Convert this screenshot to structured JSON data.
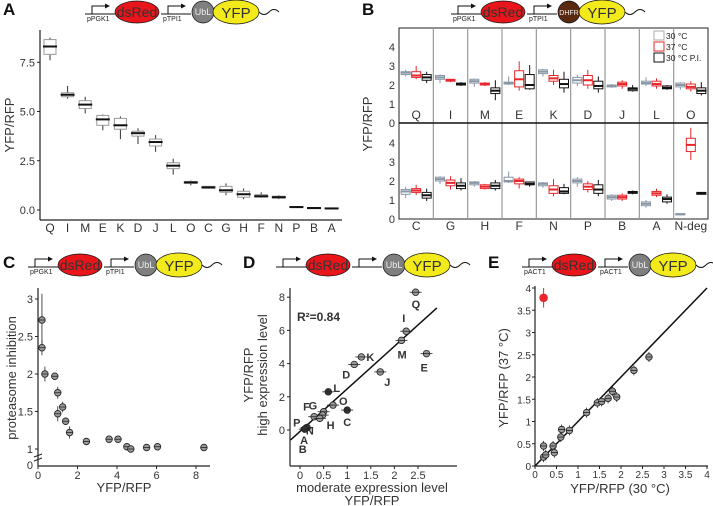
{
  "panels": [
    "A",
    "B",
    "C",
    "D",
    "E"
  ],
  "constructs": {
    "A": {
      "promoter1": "pPGK1",
      "reporter": "dsRed",
      "promoter2": "pTPI1",
      "tag": "UbL",
      "fusion": "YFP",
      "tag_color": "#7f7f7f"
    },
    "B": {
      "promoter1": "pPGK1",
      "reporter": "dsRed",
      "promoter2": "pTPI1",
      "tag": "DHFR",
      "fusion": "YFP",
      "tag_color": "#5a2a10"
    },
    "C": {
      "promoter1": "pPGK1",
      "reporter": "dsRed",
      "promoter2": "pTPI1",
      "tag": "UbL",
      "fusion": "YFP",
      "tag_color": "#7f7f7f"
    },
    "D": {
      "promoter1": "",
      "reporter": "dsRed",
      "promoter2": "",
      "tag": "UbL",
      "fusion": "YFP",
      "tag_color": "#7f7f7f"
    },
    "E": {
      "promoter1": "pACT1",
      "reporter": "dsRed",
      "promoter2": "pACT1",
      "tag": "UbL",
      "fusion": "YFP",
      "tag_color": "#7f7f7f"
    }
  },
  "colors": {
    "reporter": "#e8161b",
    "fusion": "#f2ea1a",
    "red_series": "#e8262a",
    "grey_series": "#8896a6",
    "black_series": "#111111"
  },
  "chart_data": [
    {
      "panel": "A",
      "type": "box",
      "ylabel": "YFP/RFP",
      "ylim": [
        -0.3,
        9.2
      ],
      "yticks": [
        "0.0",
        "2.5",
        "5.0",
        "7.5"
      ],
      "ytick_values": [
        0,
        2.5,
        5,
        7.5
      ],
      "categories": [
        "Q",
        "I",
        "M",
        "E",
        "K",
        "D",
        "J",
        "L",
        "O",
        "C",
        "G",
        "H",
        "F",
        "N",
        "P",
        "B",
        "A"
      ],
      "median": [
        8.3,
        5.85,
        5.35,
        4.6,
        4.3,
        3.9,
        3.45,
        2.25,
        1.4,
        1.15,
        1.0,
        0.8,
        0.7,
        0.65,
        0.15,
        0.1,
        0.08
      ],
      "q1": [
        7.9,
        5.75,
        5.15,
        4.3,
        4.1,
        3.75,
        3.25,
        2.1,
        1.35,
        1.1,
        0.9,
        0.65,
        0.65,
        0.6,
        0.12,
        0.08,
        0.05
      ],
      "q3": [
        8.65,
        5.95,
        5.55,
        4.8,
        4.65,
        4.0,
        3.6,
        2.4,
        1.45,
        1.2,
        1.2,
        0.95,
        0.78,
        0.7,
        0.17,
        0.12,
        0.1
      ],
      "min": [
        7.6,
        5.65,
        4.9,
        4.05,
        3.6,
        3.35,
        2.95,
        1.8,
        1.25,
        1.08,
        0.75,
        0.55,
        0.62,
        0.55,
        0.1,
        0.06,
        0.03
      ],
      "max": [
        8.75,
        6.3,
        5.75,
        4.85,
        4.75,
        4.15,
        3.8,
        2.6,
        1.5,
        1.22,
        1.35,
        1.1,
        0.9,
        0.75,
        0.19,
        0.14,
        0.12
      ]
    },
    {
      "panel": "B",
      "type": "box",
      "ylabel": "YFP/RFP",
      "ylim": [
        0,
        5
      ],
      "yticks": [
        "0",
        "1",
        "2",
        "3",
        "4"
      ],
      "legend": [
        "30 °C",
        "37 °C",
        "30 °C P.I."
      ],
      "legend_position": "top-right",
      "rows": [
        {
          "categories": [
            "Q",
            "I",
            "M",
            "E",
            "K",
            "D",
            "J",
            "L",
            "O"
          ],
          "series": [
            {
              "name": "30 °C",
              "median": [
                2.65,
                2.4,
                2.2,
                2.1,
                2.7,
                2.25,
                1.95,
                2.1,
                2.0
              ],
              "q1": [
                2.55,
                2.3,
                2.1,
                2.05,
                2.6,
                2.1,
                1.9,
                2.05,
                1.9
              ],
              "q3": [
                2.7,
                2.5,
                2.3,
                2.15,
                2.8,
                2.4,
                2.0,
                2.2,
                2.1
              ],
              "min": [
                2.45,
                2.1,
                1.9,
                2.0,
                2.45,
                1.95,
                1.85,
                1.95,
                1.75
              ],
              "max": [
                2.8,
                2.55,
                2.35,
                2.45,
                2.85,
                2.55,
                2.05,
                2.4,
                2.15
              ]
            },
            {
              "name": "37 °C",
              "median": [
                2.5,
                2.25,
                2.05,
                2.3,
                2.35,
                2.25,
                2.05,
                2.05,
                1.9
              ],
              "q1": [
                2.4,
                2.2,
                2.0,
                1.9,
                2.2,
                2.0,
                1.95,
                1.95,
                1.8
              ],
              "q3": [
                2.7,
                2.3,
                2.1,
                2.75,
                2.5,
                2.5,
                2.15,
                2.2,
                2.05
              ],
              "min": [
                2.3,
                2.15,
                1.95,
                1.7,
                2.0,
                1.8,
                1.8,
                1.8,
                1.65
              ],
              "max": [
                3.0,
                2.3,
                2.15,
                3.25,
                2.8,
                2.8,
                2.25,
                2.35,
                2.2
              ]
            },
            {
              "name": "30 °C P.I.",
              "median": [
                2.4,
                2.05,
                1.7,
                2.0,
                2.05,
                1.95,
                1.8,
                1.85,
                1.7
              ],
              "q1": [
                2.25,
                2.0,
                1.55,
                1.8,
                1.85,
                1.8,
                1.7,
                1.8,
                1.55
              ],
              "q3": [
                2.55,
                2.1,
                1.85,
                2.55,
                2.3,
                2.2,
                1.85,
                1.95,
                1.85
              ],
              "min": [
                2.1,
                1.95,
                1.2,
                1.75,
                1.6,
                1.6,
                1.65,
                1.75,
                1.45
              ],
              "max": [
                2.7,
                2.15,
                2.25,
                3.05,
                2.7,
                2.45,
                2.0,
                2.0,
                2.15
              ]
            }
          ]
        },
        {
          "categories": [
            "C",
            "G",
            "H",
            "F",
            "N",
            "P",
            "B",
            "A",
            "N-deg"
          ],
          "series": [
            {
              "name": "30 °C",
              "median": [
                1.45,
                2.1,
                1.9,
                2.0,
                1.85,
                2.0,
                1.15,
                0.8,
                0.25
              ],
              "q1": [
                1.3,
                2.0,
                1.8,
                1.95,
                1.75,
                1.9,
                1.05,
                0.7,
                0.22
              ],
              "q3": [
                1.55,
                2.2,
                1.95,
                2.2,
                1.9,
                2.1,
                1.25,
                0.9,
                0.28
              ],
              "min": [
                1.1,
                1.85,
                1.7,
                1.9,
                1.65,
                1.7,
                0.95,
                0.6,
                0.2
              ],
              "max": [
                1.7,
                2.25,
                2.0,
                2.5,
                1.95,
                2.2,
                1.3,
                1.0,
                0.3
              ]
            },
            {
              "name": "37 °C",
              "median": [
                1.5,
                1.9,
                1.7,
                2.0,
                1.55,
                1.7,
                1.15,
                1.35,
                3.9
              ],
              "q1": [
                1.4,
                1.75,
                1.6,
                1.85,
                1.35,
                1.55,
                1.05,
                1.25,
                3.55
              ],
              "q3": [
                1.6,
                2.05,
                1.8,
                2.1,
                1.75,
                1.85,
                1.25,
                1.45,
                4.25
              ],
              "min": [
                1.25,
                1.55,
                1.55,
                1.6,
                1.2,
                1.4,
                0.95,
                1.15,
                3.1
              ],
              "max": [
                1.8,
                2.25,
                1.85,
                2.2,
                2.1,
                2.0,
                1.35,
                1.6,
                4.8
              ]
            },
            {
              "name": "30 °C P.I.",
              "median": [
                1.25,
                1.75,
                1.75,
                1.85,
                1.45,
                1.55,
                1.4,
                1.05,
                1.35
              ],
              "q1": [
                1.1,
                1.6,
                1.6,
                1.8,
                1.35,
                1.35,
                1.35,
                0.9,
                1.3
              ],
              "q3": [
                1.4,
                1.9,
                1.9,
                1.95,
                1.65,
                1.8,
                1.45,
                1.15,
                1.4
              ],
              "min": [
                0.95,
                1.5,
                1.5,
                1.7,
                1.3,
                1.2,
                1.3,
                0.8,
                1.28
              ],
              "max": [
                1.6,
                2.15,
                2.05,
                1.95,
                1.85,
                2.05,
                1.5,
                1.3,
                1.42
              ]
            }
          ]
        }
      ]
    },
    {
      "panel": "C",
      "type": "scatter",
      "xlabel": "YFP/RFP",
      "ylabel": "proteasome inhibition",
      "xlim": [
        0,
        9
      ],
      "ylim": [
        1,
        3.2
      ],
      "xticks": [
        "0",
        "2",
        "4",
        "6",
        "8"
      ],
      "yticks": [
        "1",
        "1.5",
        "2",
        "2.5",
        "3"
      ],
      "axis_break_label": "0",
      "points": [
        {
          "x": 0.2,
          "y": 2.72,
          "yerr": 0.35
        },
        {
          "x": 0.2,
          "y": 2.35,
          "yerr": 0.1
        },
        {
          "x": 0.35,
          "y": 2.0,
          "yerr": 0.1
        },
        {
          "x": 0.85,
          "y": 1.97,
          "yerr": 0.04
        },
        {
          "x": 1.0,
          "y": 1.75,
          "yerr": 0.08
        },
        {
          "x": 1.0,
          "y": 1.47,
          "yerr": 0.1
        },
        {
          "x": 1.25,
          "y": 1.56,
          "yerr": 0.07
        },
        {
          "x": 1.4,
          "y": 1.37,
          "yerr": 0.05
        },
        {
          "x": 1.6,
          "y": 1.22,
          "yerr": 0.08
        },
        {
          "x": 2.45,
          "y": 1.1,
          "yerr": 0.03
        },
        {
          "x": 3.6,
          "y": 1.13,
          "yerr": 0.03
        },
        {
          "x": 4.05,
          "y": 1.13,
          "yerr": 0.03
        },
        {
          "x": 4.5,
          "y": 1.03,
          "yerr": 0.03
        },
        {
          "x": 4.7,
          "y": 1.0,
          "yerr": 0.02
        },
        {
          "x": 5.5,
          "y": 1.02,
          "yerr": 0.02
        },
        {
          "x": 6.05,
          "y": 1.03,
          "yerr": 0.03
        },
        {
          "x": 8.4,
          "y": 1.02,
          "yerr": 0.02
        }
      ]
    },
    {
      "panel": "D",
      "type": "scatter",
      "xlabel": "moderate expression level",
      "xlabel2": "YFP/RFP",
      "ylabel": "high expression level",
      "ylabel2": "YFP/RFP",
      "annotation": "R²=0.84",
      "xlim": [
        -0.2,
        2.9
      ],
      "ylim": [
        -0.6,
        8.6
      ],
      "xticks": [
        "0",
        "0.5",
        "1",
        "1.5",
        "2",
        "2.5"
      ],
      "yticks": [
        "0",
        "2",
        "4",
        "6",
        "8"
      ],
      "fit_line": {
        "x": [
          -0.2,
          2.9
        ],
        "y": [
          -0.6,
          7.35
        ]
      },
      "points": [
        {
          "label": "Q",
          "x": 2.45,
          "y": 8.3
        },
        {
          "label": "I",
          "x": 2.25,
          "y": 5.95
        },
        {
          "label": "M",
          "x": 2.15,
          "y": 5.4
        },
        {
          "label": "E",
          "x": 2.68,
          "y": 4.6
        },
        {
          "label": "K",
          "x": 1.3,
          "y": 4.4
        },
        {
          "label": "D",
          "x": 1.15,
          "y": 3.95
        },
        {
          "label": "J",
          "x": 1.7,
          "y": 3.5
        },
        {
          "label": "L",
          "x": 0.6,
          "y": 2.3
        },
        {
          "label": "G",
          "x": 0.5,
          "y": 1.1
        },
        {
          "label": "O",
          "x": 0.7,
          "y": 1.5
        },
        {
          "label": "C",
          "x": 1.0,
          "y": 1.2
        },
        {
          "label": "F",
          "x": 0.3,
          "y": 0.8
        },
        {
          "label": "H",
          "x": 0.48,
          "y": 0.9
        },
        {
          "label": "N",
          "x": 0.42,
          "y": 0.7
        },
        {
          "label": "P",
          "x": 0.15,
          "y": 0.15
        },
        {
          "label": "A",
          "x": 0.13,
          "y": 0.12
        },
        {
          "label": "B",
          "x": 0.1,
          "y": 0.05
        }
      ]
    },
    {
      "panel": "E",
      "type": "scatter",
      "xlabel": "YFP/RFP (30 °C)",
      "ylabel": "YFP/RFP (37 °C)",
      "xlim": [
        0,
        4
      ],
      "ylim": [
        0,
        4
      ],
      "xticks": [
        "0",
        "0.5",
        "1",
        "1.5",
        "2",
        "2.5",
        "3",
        "3.5",
        "4"
      ],
      "yticks": [
        "0",
        "0.5",
        "1",
        "1.5",
        "2",
        "2.5",
        "3",
        "3.5",
        "4"
      ],
      "fit_line": {
        "x": [
          0,
          4
        ],
        "y": [
          0,
          4
        ]
      },
      "highlight": {
        "x": 0.2,
        "y": 3.78,
        "yerr": 0.22,
        "color": "#e8262a"
      },
      "points": [
        {
          "x": 0.2,
          "y": 0.45
        },
        {
          "x": 0.2,
          "y": 0.2
        },
        {
          "x": 0.25,
          "y": 0.25
        },
        {
          "x": 0.42,
          "y": 0.45
        },
        {
          "x": 0.45,
          "y": 0.3
        },
        {
          "x": 0.6,
          "y": 0.65
        },
        {
          "x": 0.62,
          "y": 0.82
        },
        {
          "x": 0.8,
          "y": 0.8
        },
        {
          "x": 1.2,
          "y": 1.2
        },
        {
          "x": 1.45,
          "y": 1.42
        },
        {
          "x": 1.55,
          "y": 1.45
        },
        {
          "x": 1.7,
          "y": 1.52
        },
        {
          "x": 1.8,
          "y": 1.68
        },
        {
          "x": 1.9,
          "y": 1.55
        },
        {
          "x": 2.3,
          "y": 2.15
        },
        {
          "x": 2.65,
          "y": 2.45
        }
      ]
    }
  ]
}
